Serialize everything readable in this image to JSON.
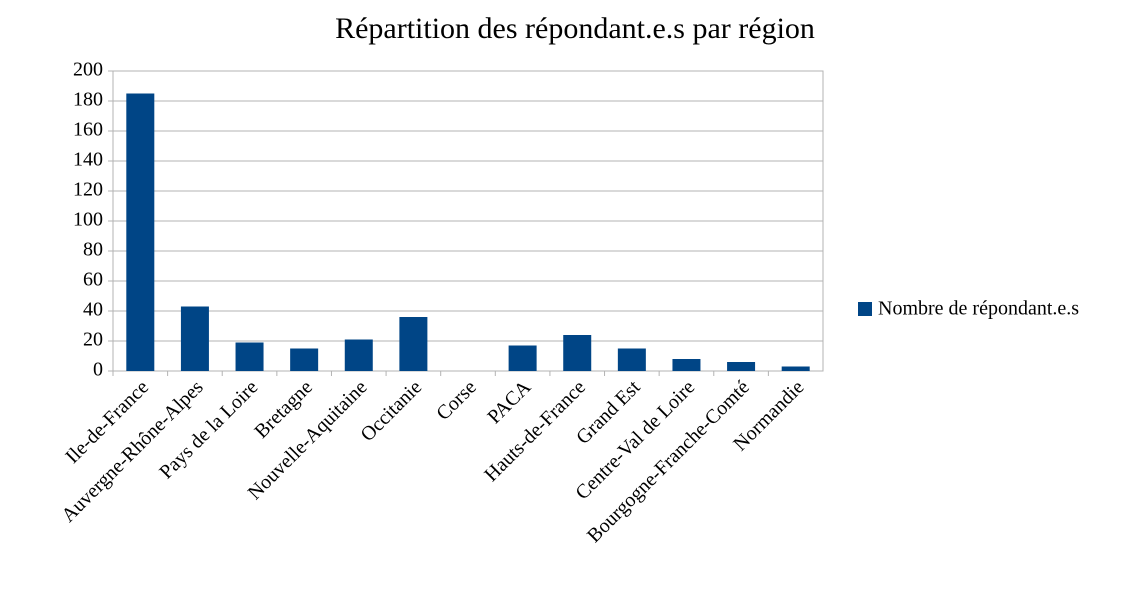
{
  "chart_data": {
    "type": "bar",
    "title": "Répartition des répondant.e.s par région",
    "categories": [
      "Ile-de-France",
      "Auvergne-Rhône-Alpes",
      "Pays de la Loire",
      "Bretagne",
      "Nouvelle-Aquitaine",
      "Occitanie",
      "Corse",
      "PACA",
      "Hauts-de-France",
      "Grand Est",
      "Centre-Val de Loire",
      "Bourgogne-Franche-Comté",
      "Normandie"
    ],
    "series": [
      {
        "name": "Nombre de répondant.e.s",
        "color": "#004586",
        "values": [
          185,
          43,
          19,
          15,
          21,
          36,
          0,
          17,
          24,
          15,
          8,
          6,
          3
        ]
      }
    ],
    "ylim": [
      0,
      200
    ],
    "yticks": [
      0,
      20,
      40,
      60,
      80,
      100,
      120,
      140,
      160,
      180,
      200
    ],
    "grid": true,
    "legend": "right"
  }
}
